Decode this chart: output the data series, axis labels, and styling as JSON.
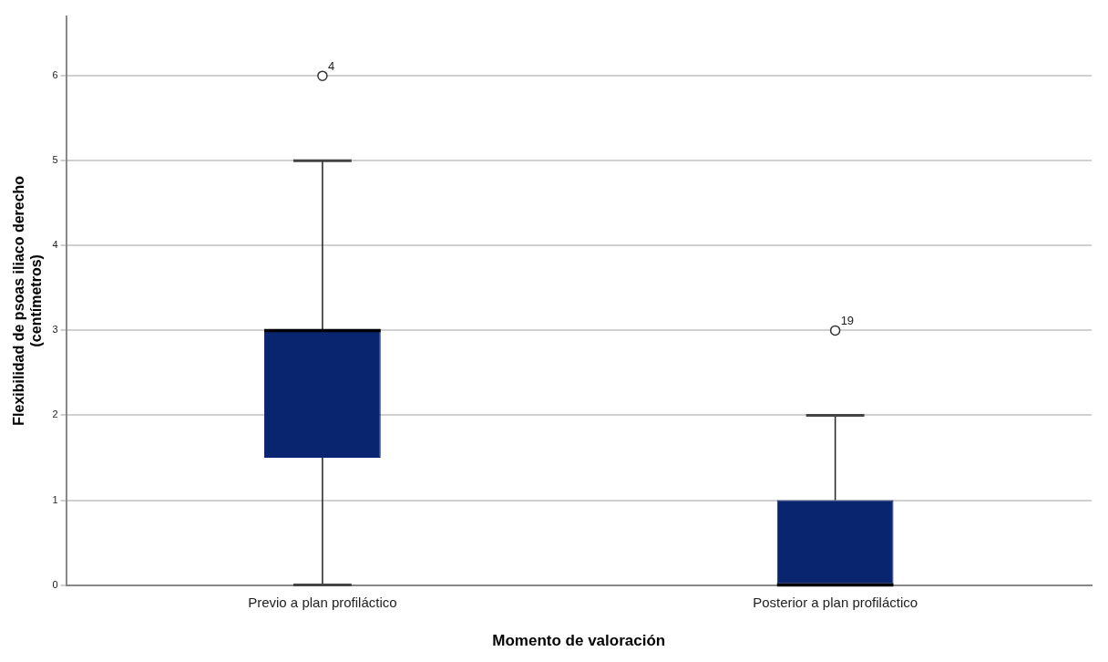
{
  "chart_data": {
    "type": "box",
    "xlabel": "Momento de valoración",
    "ylabel": "Flexibilidad de psoas iliaco derecho\n(centímetros)",
    "categories": [
      "Previo a plan profiláctico",
      "Posterior a plan profiláctico"
    ],
    "ylim": [
      0,
      6.7
    ],
    "yticks": [
      0,
      1,
      2,
      3,
      4,
      5,
      6
    ],
    "grid": "y",
    "legend": false,
    "marker": "circle",
    "series": [
      {
        "color": "#0a2570",
        "boxes": [
          {
            "low": 0,
            "q1": 1.5,
            "median": 3,
            "q3": 3,
            "high": 5,
            "outliers": [
              6
            ]
          },
          {
            "low": 0,
            "q1": 0,
            "median": 0,
            "q3": 1,
            "high": 2,
            "outliers": [
              3
            ]
          }
        ]
      }
    ],
    "annotations": [
      "4",
      "19"
    ]
  }
}
